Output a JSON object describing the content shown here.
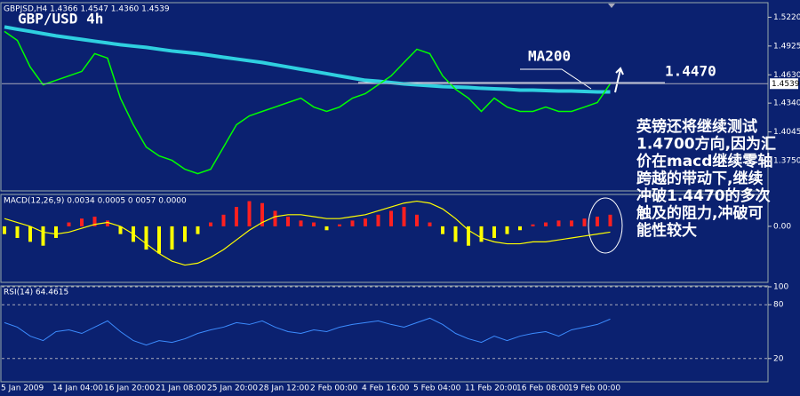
{
  "chart_data": [
    {
      "type": "line",
      "label": "GBPJSD,H4 1.4366 1.4547 1.4360 1.4539",
      "ylim": [
        1.345,
        1.536
      ],
      "yticks": [
        {
          "value": 1.522,
          "label": "1.5220"
        },
        1.4925,
        {
          "value": 1.463,
          "label": "1.4630"
        },
        {
          "value": 1.434,
          "label": "1.4340"
        },
        1.4045,
        {
          "value": 1.375,
          "label": "1.3750"
        }
      ],
      "last_price": 1.4539,
      "series": [
        {
          "color": "#2fd0e0",
          "width": 4,
          "values": [
            1.512,
            1.5097,
            1.5075,
            1.5052,
            1.5029,
            1.5011,
            1.4993,
            1.4974,
            1.4956,
            1.4938,
            1.4924,
            1.4911,
            1.4892,
            1.4874,
            1.4861,
            1.4847,
            1.4829,
            1.481,
            1.4792,
            1.4774,
            1.4756,
            1.4733,
            1.471,
            1.4687,
            1.4665,
            1.4642,
            1.4619,
            1.4596,
            1.4574,
            1.4564,
            1.4551,
            1.4537,
            1.4528,
            1.4519,
            1.451,
            1.4505,
            1.4501,
            1.4492,
            1.4487,
            1.4482,
            1.4473,
            1.4473,
            1.4469,
            1.4464,
            1.4464,
            1.446,
            1.4455,
            1.4455
          ]
        },
        {
          "color": "#00ff00",
          "width": 1.5,
          "values": [
            1.5075,
            1.4983,
            1.471,
            1.4528,
            1.4574,
            1.4619,
            1.4665,
            1.4847,
            1.4801,
            1.4391,
            1.4118,
            1.389,
            1.3799,
            1.3754,
            1.3663,
            1.3617,
            1.3663,
            1.389,
            1.4118,
            1.4209,
            1.4255,
            1.43,
            1.4346,
            1.4391,
            1.43,
            1.4255,
            1.43,
            1.4391,
            1.4437,
            1.4528,
            1.4619,
            1.4756,
            1.4892,
            1.4847,
            1.4619,
            1.4482,
            1.4391,
            1.4255,
            1.4391,
            1.43,
            1.4255,
            1.4255,
            1.43,
            1.4255,
            1.4255,
            1.43,
            1.4346,
            1.4539
          ]
        }
      ]
    },
    {
      "type": "bar",
      "label": "MACD(12,26,9) 0.0034 0.0005 0 0057 0.0000",
      "ylim": [
        -0.028,
        0.016
      ],
      "yticks": [
        {
          "value": 0,
          "label": "0.00"
        }
      ],
      "positive_color": "#ff2020",
      "negative_color": "#ffff00",
      "values": [
        -0.004,
        -0.006,
        -0.008,
        -0.01,
        -0.006,
        0.002,
        0.004,
        0.005,
        0.003,
        -0.004,
        -0.008,
        -0.012,
        -0.014,
        -0.012,
        -0.008,
        -0.004,
        0.002,
        0.006,
        0.01,
        0.013,
        0.012,
        0.008,
        0.005,
        0.003,
        0.002,
        -0.002,
        0.001,
        0.003,
        0.004,
        0.006,
        0.008,
        0.01,
        0.006,
        0.002,
        -0.004,
        -0.008,
        -0.01,
        -0.008,
        -0.006,
        -0.004,
        -0.002,
        0.001,
        0.002,
        0.003,
        0.003,
        0.004,
        0.005,
        0.006
      ],
      "line": {
        "color": "#ffff00",
        "values": [
          0.004,
          0.002,
          0,
          -0.003,
          -0.004,
          -0.003,
          -0.001,
          0.001,
          0.002,
          0,
          -0.004,
          -0.009,
          -0.014,
          -0.018,
          -0.02,
          -0.019,
          -0.016,
          -0.012,
          -0.007,
          -0.002,
          0.002,
          0.005,
          0.006,
          0.006,
          0.005,
          0.004,
          0.004,
          0.005,
          0.006,
          0.008,
          0.01,
          0.012,
          0.013,
          0.012,
          0.009,
          0.004,
          -0.002,
          -0.006,
          -0.008,
          -0.009,
          -0.009,
          -0.008,
          -0.008,
          -0.007,
          -0.006,
          -0.005,
          -0.004,
          -0.003
        ]
      }
    },
    {
      "type": "line",
      "label": "RSI(14) 64.4615",
      "ylim": [
        0,
        100
      ],
      "yticks": [
        100,
        80,
        20
      ],
      "grid": true,
      "categories": [
        "5 Jan 2009",
        null,
        null,
        null,
        "14 Jan 04:00",
        null,
        null,
        null,
        "16 Jan 20:00",
        null,
        null,
        null,
        "21 Jan 08:00",
        null,
        null,
        null,
        "25 Jan 20:00",
        null,
        null,
        null,
        "28 Jan 12:00",
        null,
        null,
        null,
        "2 Feb 00:00",
        null,
        null,
        null,
        "4 Feb 16:00",
        null,
        null,
        null,
        "5 Feb 04:00",
        null,
        null,
        null,
        "11 Feb 20:00",
        null,
        null,
        null,
        "16 Feb 08:00",
        null,
        null,
        null,
        "19 Feb 00:00",
        null,
        null,
        null
      ],
      "series": [
        {
          "color": "#3c8cff",
          "width": 1,
          "values": [
            60,
            55,
            45,
            40,
            50,
            52,
            48,
            55,
            62,
            50,
            40,
            35,
            40,
            38,
            42,
            48,
            52,
            55,
            60,
            58,
            62,
            55,
            50,
            48,
            52,
            50,
            55,
            58,
            60,
            62,
            58,
            55,
            60,
            65,
            58,
            48,
            42,
            38,
            45,
            40,
            45,
            48,
            50,
            45,
            52,
            55,
            58,
            64
          ]
        }
      ]
    }
  ],
  "annotations": {
    "title": "GBP/USD 4h",
    "ma": "MA200",
    "level": "1.4470",
    "comment": [
      "英镑还将继续测试",
      "1.4700方向,因为汇",
      "价在macd继续零轴",
      "跨越的带动下,继续",
      "冲破1.4470的多次",
      "触及的阻力,冲破可",
      "能性较大"
    ]
  }
}
